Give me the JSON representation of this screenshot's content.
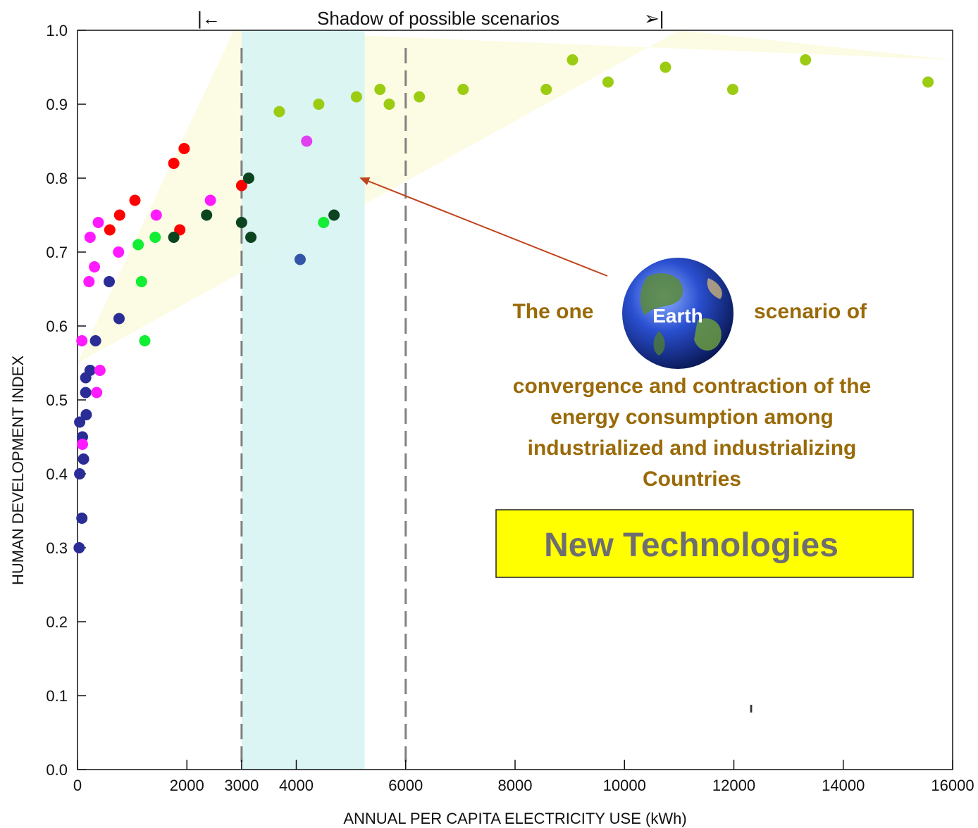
{
  "chart_data": {
    "type": "scatter",
    "title": "",
    "xlabel": "ANNUAL PER CAPITA ELECTRICITY USE (kWh)",
    "ylabel": "HUMAN DEVELOPMENT INDEX",
    "xlim": [
      0,
      16000
    ],
    "ylim": [
      0,
      1.0
    ],
    "x_ticks": [
      0,
      2000,
      3000,
      4000,
      6000,
      8000,
      10000,
      12000,
      14000,
      16000
    ],
    "y_ticks": [
      0.0,
      0.1,
      0.2,
      0.3,
      0.4,
      0.5,
      0.6,
      0.7,
      0.8,
      0.9,
      1.0
    ],
    "x_tick_labels": [
      "0",
      "2000",
      "3000",
      "4000",
      "6000",
      "8000",
      "10000",
      "12000",
      "14000",
      "16000"
    ],
    "y_tick_labels": [
      "0.0",
      "0.1",
      "0.2",
      "0.3",
      "0.4",
      "0.5",
      "0.6",
      "0.7",
      "0.8",
      "0.9",
      "1.0"
    ],
    "grid": false,
    "dashed_lines_x": [
      3000,
      6000
    ],
    "shaded_band_x": [
      3000,
      5250
    ],
    "scenario_wedge": {
      "from": [
        0,
        0.55
      ],
      "upper_to": [
        11000,
        1.0
      ],
      "lower_to": [
        16000,
        0.96
      ]
    },
    "colors": {
      "navy": "#2b2d96",
      "blue": "#3355a8",
      "magenta": "#ff1aff",
      "violet": "#e040f0",
      "red": "#ff0000",
      "green": "#11ee33",
      "darkgreen": "#0c4420",
      "lime": "#9ccc12",
      "band": "#d8f4f2",
      "wedge": "#fcfbe3",
      "arrow": "#c0441c",
      "dashed": "#808080",
      "tech_box": "#ffff00"
    },
    "series": [
      {
        "color": "navy",
        "points": [
          [
            30,
            0.3
          ],
          [
            40,
            0.4
          ],
          [
            40,
            0.47
          ],
          [
            80,
            0.34
          ],
          [
            90,
            0.45
          ],
          [
            110,
            0.42
          ],
          [
            160,
            0.48
          ],
          [
            150,
            0.51
          ],
          [
            150,
            0.53
          ],
          [
            230,
            0.54
          ],
          [
            330,
            0.58
          ],
          [
            580,
            0.66
          ],
          [
            760,
            0.61
          ]
        ]
      },
      {
        "color": "blue",
        "points": [
          [
            4070,
            0.69
          ]
        ]
      },
      {
        "color": "magenta",
        "points": [
          [
            80,
            0.58
          ],
          [
            90,
            0.44
          ],
          [
            210,
            0.66
          ],
          [
            230,
            0.72
          ],
          [
            310,
            0.68
          ],
          [
            350,
            0.51
          ],
          [
            380,
            0.74
          ],
          [
            410,
            0.54
          ],
          [
            750,
            0.7
          ],
          [
            1440,
            0.75
          ],
          [
            2430,
            0.77
          ]
        ]
      },
      {
        "color": "violet",
        "points": [
          [
            4190,
            0.85
          ]
        ]
      },
      {
        "color": "red",
        "points": [
          [
            590,
            0.73
          ],
          [
            770,
            0.75
          ],
          [
            1050,
            0.77
          ],
          [
            1760,
            0.82
          ],
          [
            1870,
            0.73
          ],
          [
            1950,
            0.84
          ],
          [
            3000,
            0.79
          ]
        ]
      },
      {
        "color": "green",
        "points": [
          [
            1110,
            0.71
          ],
          [
            1170,
            0.66
          ],
          [
            1230,
            0.58
          ],
          [
            1420,
            0.72
          ],
          [
            4500,
            0.74
          ]
        ]
      },
      {
        "color": "darkgreen",
        "points": [
          [
            1760,
            0.72
          ],
          [
            2360,
            0.75
          ],
          [
            3000,
            0.74
          ],
          [
            3130,
            0.8
          ],
          [
            3170,
            0.72
          ],
          [
            4690,
            0.75
          ]
        ]
      },
      {
        "color": "lime",
        "points": [
          [
            3690,
            0.89
          ],
          [
            4410,
            0.9
          ],
          [
            5100,
            0.91
          ],
          [
            5530,
            0.92
          ],
          [
            5700,
            0.9
          ],
          [
            6250,
            0.91
          ],
          [
            7050,
            0.92
          ],
          [
            8570,
            0.92
          ],
          [
            9050,
            0.96
          ],
          [
            9700,
            0.93
          ],
          [
            10750,
            0.95
          ],
          [
            11980,
            0.92
          ],
          [
            13310,
            0.96
          ],
          [
            15550,
            0.93
          ]
        ]
      }
    ]
  },
  "header": {
    "scenario_label": "Shadow of possible scenarios",
    "left_marker": "|←",
    "right_marker": "➢|"
  },
  "annotation": {
    "line1_left": "The one",
    "earth": "Earth",
    "line1_right": "scenario of",
    "lines": [
      "convergence and contraction of the",
      "energy consumption among",
      "industrialized and industrializing",
      "Countries"
    ]
  },
  "tech_box": {
    "label": "New Technologies"
  },
  "stray_mark": "ı"
}
